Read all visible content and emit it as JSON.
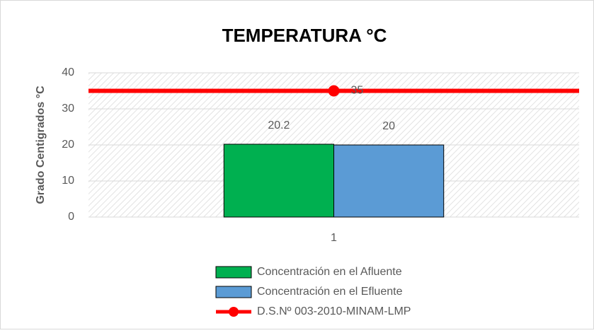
{
  "chart_data": {
    "type": "bar",
    "title": "TEMPERATURA °C",
    "y_label": "Grado Centigrados °C",
    "categories": [
      "1"
    ],
    "series": [
      {
        "name": "Concentración en el Afluente",
        "color": "#00b050",
        "type": "bar",
        "values": [
          20.2
        ]
      },
      {
        "name": "Concentración en el Efluente",
        "color": "#5b9bd5",
        "type": "bar",
        "values": [
          20
        ]
      },
      {
        "name": "D.S.Nº 003-2010-MINAM-LMP",
        "color": "#ff0000",
        "type": "line",
        "values": [
          35
        ]
      }
    ],
    "ylim": [
      0,
      40
    ],
    "yticks": [
      0,
      10,
      20,
      30,
      40
    ],
    "grid": true,
    "legend": "bottom"
  }
}
